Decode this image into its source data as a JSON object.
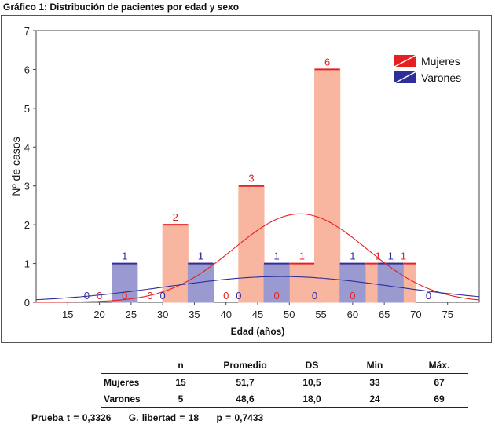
{
  "figure_title": "Gráfico 1: Distribución de pacientes por edad y sexo",
  "chart_data": {
    "type": "bar",
    "xlabel": "Edad (años)",
    "ylabel": "Nº de casos",
    "xlim": [
      10,
      80
    ],
    "ylim": [
      0,
      7
    ],
    "x_ticks": [
      15,
      20,
      25,
      30,
      35,
      40,
      45,
      50,
      55,
      60,
      65,
      70,
      75
    ],
    "y_ticks": [
      0,
      1,
      2,
      3,
      4,
      5,
      6,
      7
    ],
    "bin_width": 4,
    "legend_position": "top-right",
    "series": [
      {
        "name": "Mujeres",
        "color": "#e62020",
        "fill": "#f8b5a0",
        "x": [
          20,
          24,
          28,
          32,
          36,
          40,
          44,
          48,
          52,
          56,
          60,
          64,
          68,
          72
        ],
        "values": [
          0,
          0,
          0,
          2,
          1,
          0,
          3,
          0,
          1,
          6,
          0,
          1,
          1,
          0
        ]
      },
      {
        "name": "Varones",
        "color": "#2f2f9a",
        "fill": "#9a9ad0",
        "x": [
          18,
          24,
          30,
          36,
          42,
          48,
          54,
          60,
          66,
          72
        ],
        "values": [
          0,
          1,
          0,
          1,
          0,
          1,
          0,
          1,
          1,
          0
        ]
      }
    ],
    "normal_curves": [
      {
        "series": "Mujeres",
        "mean": 51.7,
        "sd": 10.5,
        "n": 15,
        "bin_width": 4
      },
      {
        "series": "Varones",
        "mean": 48.6,
        "sd": 18.0,
        "n": 5,
        "bin_width": 6
      }
    ]
  },
  "stats_table": {
    "headers": [
      "",
      "n",
      "Promedio",
      "DS",
      "Min",
      "Máx."
    ],
    "rows": [
      {
        "label": "Mujeres",
        "n": "15",
        "promedio": "51,7",
        "ds": "10,5",
        "min": "33",
        "max": "67"
      },
      {
        "label": "Varones",
        "n": "5",
        "promedio": "48,6",
        "ds": "18,0",
        "min": "24",
        "max": "69"
      }
    ]
  },
  "footer": {
    "prueba_t": "Prueba t = 0,3326",
    "g_libertad": "G. libertad = 18",
    "p_value": "p = 0,7433"
  }
}
